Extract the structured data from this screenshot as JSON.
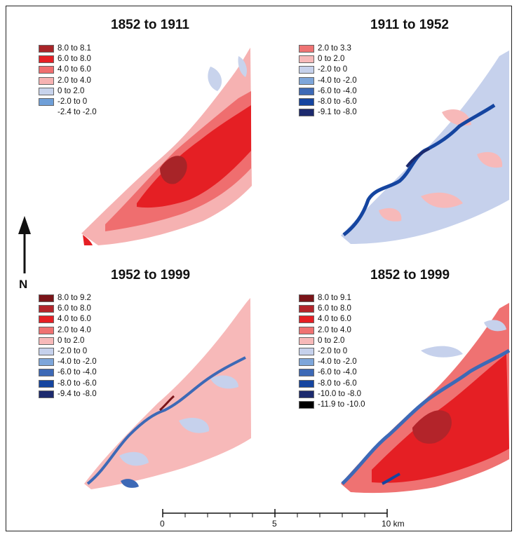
{
  "panels": [
    {
      "title": "1852 to 1911",
      "legend": [
        {
          "label": "8.0 to 8.1",
          "color": "#a82428"
        },
        {
          "label": "6.0 to 8.0",
          "color": "#e51f24"
        },
        {
          "label": "4.0 to 6.0",
          "color": "#ef6e6f"
        },
        {
          "label": "2.0 to 4.0",
          "color": "#f6b2b2"
        },
        {
          "label": "0 to 2.0",
          "color": "#c8d3ec"
        },
        {
          "label": "-2.0 to 0",
          "color": "#6f9fd8"
        },
        {
          "label": "-2.4 to -2.0",
          "color": ""
        }
      ]
    },
    {
      "title": "1911 to 1952",
      "legend": [
        {
          "label": "2.0 to 3.3",
          "color": "#ee7373"
        },
        {
          "label": "0 to 2.0",
          "color": "#f7b9b9"
        },
        {
          "label": "-2.0 to 0",
          "color": "#c6d1ec"
        },
        {
          "label": "-4.0 to -2.0",
          "color": "#7ea6da"
        },
        {
          "label": "-6.0 to -4.0",
          "color": "#3d69b6"
        },
        {
          "label": "-8.0 to -6.0",
          "color": "#1545a0"
        },
        {
          "label": "-9.1 to -8.0",
          "color": "#1c2a6e"
        }
      ]
    },
    {
      "title": "1952 to 1999",
      "legend": [
        {
          "label": "8.0 to 9.2",
          "color": "#7a1418"
        },
        {
          "label": "6.0 to 8.0",
          "color": "#b3242a"
        },
        {
          "label": "4.0 to 6.0",
          "color": "#e51f24"
        },
        {
          "label": "2.0 to 4.0",
          "color": "#ef7272"
        },
        {
          "label": "0 to 2.0",
          "color": "#f7b9b9"
        },
        {
          "label": "-2.0 to 0",
          "color": "#c6d1ec"
        },
        {
          "label": "-4.0 to -2.0",
          "color": "#7ea6da"
        },
        {
          "label": "-6.0 to -4.0",
          "color": "#3d69b6"
        },
        {
          "label": "-8.0 to -6.0",
          "color": "#1545a0"
        },
        {
          "label": "-9.4 to -8.0",
          "color": "#1c2a6e"
        }
      ]
    },
    {
      "title": "1852 to 1999",
      "legend": [
        {
          "label": "8.0 to 9.1",
          "color": "#7a1418"
        },
        {
          "label": "6.0 to 8.0",
          "color": "#b3242a"
        },
        {
          "label": "4.0 to 6.0",
          "color": "#e51f24"
        },
        {
          "label": "2.0 to 4.0",
          "color": "#ef7272"
        },
        {
          "label": "0 to 2.0",
          "color": "#f7b9b9"
        },
        {
          "label": "-2.0 to 0",
          "color": "#c6d1ec"
        },
        {
          "label": "-4.0 to -2.0",
          "color": "#7ea6da"
        },
        {
          "label": "-6.0 to -4.0",
          "color": "#3d69b6"
        },
        {
          "label": "-8.0 to -6.0",
          "color": "#1545a0"
        },
        {
          "label": "-10.0 to -8.0",
          "color": "#1c2a6e"
        },
        {
          "label": "-11.9 to -10.0",
          "color": "#000000"
        }
      ]
    }
  ],
  "north_arrow": {
    "label": "N"
  },
  "scale_bar": {
    "labels": [
      "0",
      "5",
      "10 km"
    ]
  }
}
